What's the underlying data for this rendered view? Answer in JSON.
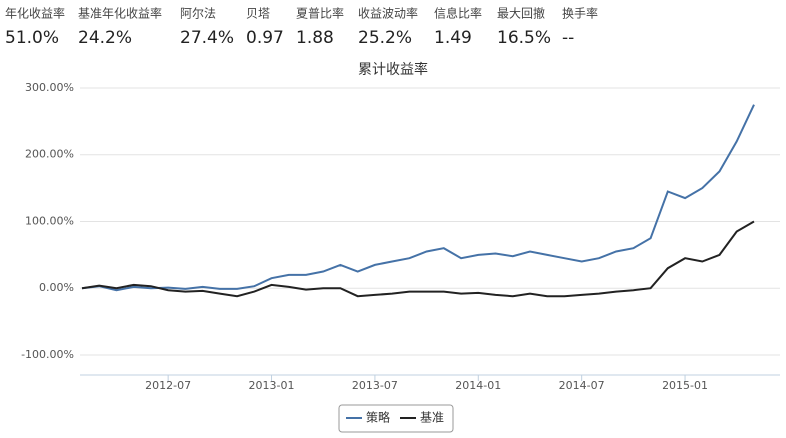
{
  "header": {
    "stats": [
      {
        "label": "年化收益率",
        "value": "51.0%"
      },
      {
        "label": "基准年化收益率",
        "value": "24.2%"
      },
      {
        "label": "阿尔法",
        "value": "27.4%"
      },
      {
        "label": "贝塔",
        "value": "0.97"
      },
      {
        "label": "夏普比率",
        "value": "1.88"
      },
      {
        "label": "收益波动率",
        "value": "25.2%"
      },
      {
        "label": "信息比率",
        "value": "1.49"
      },
      {
        "label": "最大回撤",
        "value": "16.5%"
      },
      {
        "label": "换手率",
        "value": "--"
      }
    ]
  },
  "chart_data": {
    "type": "line",
    "title": "累计收益率",
    "x": [
      "2012-02",
      "2012-03",
      "2012-04",
      "2012-05",
      "2012-06",
      "2012-07",
      "2012-08",
      "2012-09",
      "2012-10",
      "2012-11",
      "2012-12",
      "2013-01",
      "2013-02",
      "2013-03",
      "2013-04",
      "2013-05",
      "2013-06",
      "2013-07",
      "2013-08",
      "2013-09",
      "2013-10",
      "2013-11",
      "2013-12",
      "2014-01",
      "2014-02",
      "2014-03",
      "2014-04",
      "2014-05",
      "2014-06",
      "2014-07",
      "2014-08",
      "2014-09",
      "2014-10",
      "2014-11",
      "2014-12",
      "2015-01",
      "2015-02",
      "2015-03",
      "2015-04",
      "2015-05"
    ],
    "series": [
      {
        "name": "策略",
        "color": "#4572a7",
        "values": [
          0,
          3,
          -3,
          2,
          0,
          1,
          -1,
          2,
          -1,
          -1,
          3,
          15,
          20,
          20,
          25,
          35,
          25,
          35,
          40,
          45,
          55,
          60,
          45,
          50,
          52,
          48,
          55,
          50,
          45,
          40,
          45,
          55,
          60,
          75,
          145,
          135,
          150,
          175,
          220,
          275
        ]
      },
      {
        "name": "基准",
        "color": "#222222",
        "values": [
          0,
          4,
          0,
          5,
          3,
          -3,
          -5,
          -4,
          -8,
          -12,
          -5,
          5,
          2,
          -2,
          0,
          0,
          -12,
          -10,
          -8,
          -5,
          -5,
          -5,
          -8,
          -7,
          -10,
          -12,
          -8,
          -12,
          -12,
          -10,
          -8,
          -5,
          -3,
          0,
          30,
          45,
          40,
          50,
          85,
          100
        ]
      }
    ],
    "ylim": [
      -130,
      300
    ],
    "yticks": [
      {
        "value": -100,
        "label": "-100.00%"
      },
      {
        "value": 0,
        "label": "0.00%"
      },
      {
        "value": 100,
        "label": "100.00%"
      },
      {
        "value": 200,
        "label": "200.00%"
      },
      {
        "value": 300,
        "label": "300.00%"
      }
    ],
    "xticks": [
      "2012-07",
      "2013-01",
      "2013-07",
      "2014-01",
      "2014-07",
      "2015-01"
    ],
    "grid": true
  }
}
